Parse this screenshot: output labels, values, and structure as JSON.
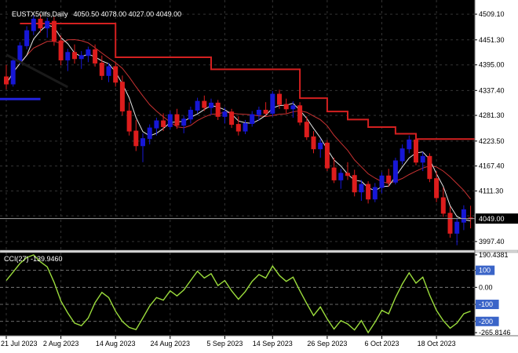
{
  "header": {
    "symbol_label": "EUSTX50lfs,Daily",
    "ohlc_label": "4050.50 4078.00 4027.00 4049.00"
  },
  "indicator": {
    "label": "CCI(27) -139.9460",
    "name": "CCI",
    "period": 27,
    "current_value": -139.946,
    "levels": [
      100,
      0,
      -100,
      -200
    ]
  },
  "colors": {
    "chart_bg": "#000000",
    "axis_bg": "#ffffff",
    "grid": "#343434",
    "candle_up": "#1717d6",
    "candle_down": "#dd1d1d",
    "ma_fast": "#e6e6e6",
    "ma_slow": "#c83232",
    "resistance": "#d42020",
    "support": "#2222dd",
    "trendline": "#1a1a1a",
    "price_line": "#a0a0a0",
    "price_box_bg": "#000000",
    "price_box_text": "#ffffff",
    "cci_line": "#9bdc3c",
    "cci_level": "#8c8c8c",
    "cci_box_bg": "#3a64c8",
    "axis_text": "#000000",
    "separator": "#d6d6d6",
    "axis_border": "#6e6e6e"
  },
  "axes": {
    "price_labels": [
      {
        "p": 4509.1,
        "t": "4509.10"
      },
      {
        "p": 4451.3,
        "t": "4451.30"
      },
      {
        "p": 4395.0,
        "t": "4395.00"
      },
      {
        "p": 4337.4,
        "t": "4337.40"
      },
      {
        "p": 4281.3,
        "t": "4281.30"
      },
      {
        "p": 4223.5,
        "t": "4223.50"
      },
      {
        "p": 4167.4,
        "t": "4167.40"
      },
      {
        "p": 4111.3,
        "t": "4111.30"
      },
      {
        "p": 3997.4,
        "t": "3997.40"
      }
    ],
    "grid_only_prices": [
      4055.2
    ],
    "current_price": {
      "value": 4049.0,
      "label": "4049.00"
    },
    "cci_labels": [
      {
        "v": 190.4381,
        "t": "190.4381",
        "box": false
      },
      {
        "v": 100,
        "t": "100",
        "box": true
      },
      {
        "v": 0,
        "t": "0.00",
        "box": false
      },
      {
        "v": -100,
        "t": "-100",
        "box": true
      },
      {
        "v": -200,
        "t": "-200",
        "box": true
      },
      {
        "v": -265.8146,
        "t": "-265.8146",
        "box": false
      }
    ],
    "date_labels": [
      {
        "bar": 0,
        "t": "21 Jul 2023"
      },
      {
        "bar": 8,
        "t": "2 Aug 2023"
      },
      {
        "bar": 16,
        "t": "14 Aug 2023"
      },
      {
        "bar": 24,
        "t": "24 Aug 2023"
      },
      {
        "bar": 32,
        "t": "5 Sep 2023"
      },
      {
        "bar": 39,
        "t": "14 Sep 2023"
      },
      {
        "bar": 47,
        "t": "26 Sep 2023"
      },
      {
        "bar": 55,
        "t": "6 Oct 2023"
      },
      {
        "bar": 63,
        "t": "18 Oct 2023"
      }
    ]
  },
  "chart_data": {
    "type": "candlestick",
    "title": "EUSTX50lfs Daily with CCI(27)",
    "price_range": {
      "min": 3976,
      "max": 4541
    },
    "cci_range": {
      "min": -284,
      "max": 204
    },
    "candles": [
      [
        "2023-07-21",
        4368,
        4395,
        4340,
        4352
      ],
      [
        "2023-07-24",
        4352,
        4412,
        4346,
        4404
      ],
      [
        "2023-07-25",
        4404,
        4446,
        4396,
        4438
      ],
      [
        "2023-07-26",
        4438,
        4482,
        4430,
        4472
      ],
      [
        "2023-07-27",
        4472,
        4506,
        4462,
        4498
      ],
      [
        "2023-07-28",
        4498,
        4509,
        4468,
        4478
      ],
      [
        "2023-07-31",
        4478,
        4501,
        4456,
        4493
      ],
      [
        "2023-08-01",
        4493,
        4503,
        4438,
        4449
      ],
      [
        "2023-08-02",
        4449,
        4461,
        4394,
        4406
      ],
      [
        "2023-08-03",
        4406,
        4431,
        4381,
        4423
      ],
      [
        "2023-08-04",
        4423,
        4441,
        4398,
        4409
      ],
      [
        "2023-08-07",
        4409,
        4426,
        4386,
        4416
      ],
      [
        "2023-08-08",
        4416,
        4436,
        4401,
        4429
      ],
      [
        "2023-08-09",
        4429,
        4441,
        4391,
        4399
      ],
      [
        "2023-08-10",
        4399,
        4416,
        4361,
        4371
      ],
      [
        "2023-08-11",
        4371,
        4399,
        4356,
        4391
      ],
      [
        "2023-08-14",
        4391,
        4401,
        4346,
        4356
      ],
      [
        "2023-08-15",
        4356,
        4371,
        4281,
        4291
      ],
      [
        "2023-08-16",
        4291,
        4311,
        4236,
        4246
      ],
      [
        "2023-08-17",
        4246,
        4271,
        4201,
        4213
      ],
      [
        "2023-08-18",
        4213,
        4241,
        4176,
        4229
      ],
      [
        "2023-08-21",
        4229,
        4261,
        4216,
        4253
      ],
      [
        "2023-08-22",
        4253,
        4276,
        4236,
        4269
      ],
      [
        "2023-08-23",
        4269,
        4286,
        4246,
        4256
      ],
      [
        "2023-08-24",
        4256,
        4291,
        4249,
        4283
      ],
      [
        "2023-08-25",
        4283,
        4296,
        4251,
        4259
      ],
      [
        "2023-08-28",
        4259,
        4281,
        4241,
        4273
      ],
      [
        "2023-08-29",
        4273,
        4301,
        4263,
        4293
      ],
      [
        "2023-08-30",
        4293,
        4321,
        4286,
        4313
      ],
      [
        "2023-08-31",
        4313,
        4326,
        4291,
        4299
      ],
      [
        "2023-09-01",
        4299,
        4319,
        4283,
        4309
      ],
      [
        "2023-09-04",
        4309,
        4316,
        4271,
        4279
      ],
      [
        "2023-09-05",
        4279,
        4299,
        4263,
        4289
      ],
      [
        "2023-09-06",
        4289,
        4296,
        4253,
        4261
      ],
      [
        "2023-09-07",
        4261,
        4279,
        4236,
        4246
      ],
      [
        "2023-09-08",
        4246,
        4271,
        4239,
        4263
      ],
      [
        "2023-09-11",
        4263,
        4291,
        4256,
        4283
      ],
      [
        "2023-09-12",
        4283,
        4301,
        4269,
        4293
      ],
      [
        "2023-09-13",
        4293,
        4311,
        4281,
        4286
      ],
      [
        "2023-09-14",
        4286,
        4336,
        4279,
        4329
      ],
      [
        "2023-09-15",
        4329,
        4339,
        4296,
        4306
      ],
      [
        "2023-09-18",
        4306,
        4319,
        4286,
        4296
      ],
      [
        "2023-09-19",
        4296,
        4313,
        4276,
        4303
      ],
      [
        "2023-09-20",
        4303,
        4311,
        4259,
        4266
      ],
      [
        "2023-09-21",
        4266,
        4279,
        4226,
        4233
      ],
      [
        "2023-09-22",
        4233,
        4246,
        4196,
        4206
      ],
      [
        "2023-09-25",
        4206,
        4229,
        4186,
        4219
      ],
      [
        "2023-09-26",
        4219,
        4226,
        4156,
        4163
      ],
      [
        "2023-09-27",
        4163,
        4186,
        4129,
        4136
      ],
      [
        "2023-09-28",
        4136,
        4161,
        4116,
        4151
      ],
      [
        "2023-09-29",
        4151,
        4176,
        4136,
        4146
      ],
      [
        "2023-10-02",
        4146,
        4159,
        4099,
        4109
      ],
      [
        "2023-10-03",
        4109,
        4136,
        4089,
        4126
      ],
      [
        "2023-10-04",
        4126,
        4133,
        4083,
        4093
      ],
      [
        "2023-10-05",
        4093,
        4129,
        4086,
        4119
      ],
      [
        "2023-10-06",
        4119,
        4153,
        4106,
        4145
      ],
      [
        "2023-10-09",
        4145,
        4161,
        4121,
        4131
      ],
      [
        "2023-10-10",
        4131,
        4186,
        4126,
        4179
      ],
      [
        "2023-10-11",
        4179,
        4216,
        4171,
        4206
      ],
      [
        "2023-10-12",
        4206,
        4236,
        4196,
        4226
      ],
      [
        "2023-10-13",
        4226,
        4233,
        4169,
        4176
      ],
      [
        "2023-10-16",
        4176,
        4199,
        4156,
        4189
      ],
      [
        "2023-10-17",
        4189,
        4196,
        4131,
        4139
      ],
      [
        "2023-10-18",
        4139,
        4156,
        4086,
        4096
      ],
      [
        "2023-10-19",
        4096,
        4119,
        4053,
        4061
      ],
      [
        "2023-10-20",
        4061,
        4076,
        4006,
        4016
      ],
      [
        "2023-10-23",
        4016,
        4049,
        3989,
        4041
      ],
      [
        "2023-10-24",
        4041,
        4079,
        4023,
        4069
      ],
      [
        "2023-10-25",
        4050.5,
        4078,
        4027,
        4049
      ]
    ],
    "cci_values": [
      40,
      90,
      140,
      175,
      190.4381,
      150,
      120,
      30,
      -80,
      -150,
      -210,
      -225,
      -180,
      -90,
      -30,
      -60,
      -140,
      -200,
      -235,
      -248,
      -180,
      -110,
      -60,
      -75,
      -20,
      -50,
      -15,
      40,
      95,
      55,
      80,
      10,
      40,
      -20,
      -70,
      -25,
      35,
      75,
      55,
      125,
      70,
      35,
      60,
      -20,
      -95,
      -165,
      -115,
      -185,
      -245,
      -195,
      -215,
      -250,
      -195,
      -265.8146,
      -205,
      -135,
      -155,
      -60,
      20,
      85,
      25,
      60,
      -45,
      -135,
      -195,
      -240,
      -210,
      -155,
      -139.946
    ],
    "resistance_steps": [
      [
        2,
        16,
        4488
      ],
      [
        16,
        30,
        4412
      ],
      [
        30,
        43,
        4385
      ],
      [
        43,
        47,
        4320
      ],
      [
        47,
        50,
        4290
      ],
      [
        50,
        53,
        4272
      ],
      [
        53,
        57,
        4255
      ],
      [
        57,
        60,
        4240
      ],
      [
        60,
        70,
        4228
      ]
    ],
    "support_steps": [
      [
        -1,
        5,
        4318
      ]
    ],
    "trendline": {
      "b1": 0,
      "p1": 4418,
      "b2": 9,
      "p2": 4345
    }
  }
}
